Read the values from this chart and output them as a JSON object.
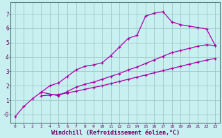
{
  "bg_color": "#c8f0f0",
  "line_color": "#aa00aa",
  "grid_color": "#9ec8c8",
  "xlabel": "Windchill (Refroidissement éolien,°C)",
  "xlabel_fontsize": 6.0,
  "ylim": [
    -0.6,
    7.8
  ],
  "xlim": [
    -0.5,
    23.5
  ],
  "yticks": [
    0,
    1,
    2,
    3,
    4,
    5,
    6,
    7
  ],
  "ytick_labels": [
    "-0",
    "1",
    "2",
    "3",
    "4",
    "5",
    "6",
    "7"
  ],
  "xticks": [
    0,
    1,
    2,
    3,
    4,
    5,
    6,
    7,
    8,
    9,
    10,
    11,
    12,
    13,
    14,
    15,
    16,
    17,
    18,
    19,
    20,
    21,
    22,
    23
  ],
  "line1_x": [
    0,
    1,
    2,
    3,
    4,
    5,
    6,
    7,
    8,
    9,
    10,
    11,
    12,
    13,
    14,
    15,
    16,
    17,
    18,
    19,
    20,
    21,
    22,
    23
  ],
  "line1_y": [
    -0.15,
    0.55,
    1.1,
    1.55,
    2.0,
    2.2,
    2.65,
    3.1,
    3.35,
    3.45,
    3.6,
    4.1,
    4.7,
    5.3,
    5.5,
    6.85,
    7.05,
    7.15,
    6.45,
    6.25,
    6.15,
    6.05,
    5.95,
    4.8
  ],
  "line2_x": [
    3,
    5,
    6,
    7,
    8,
    9,
    10,
    11,
    12,
    13,
    14,
    15,
    16,
    17,
    18,
    19,
    20,
    21,
    22,
    23
  ],
  "line2_y": [
    1.55,
    1.3,
    1.6,
    1.9,
    2.1,
    2.25,
    2.45,
    2.65,
    2.85,
    3.1,
    3.3,
    3.55,
    3.8,
    4.05,
    4.3,
    4.45,
    4.6,
    4.75,
    4.85,
    4.8
  ],
  "line3_x": [
    3,
    4,
    5,
    6,
    7,
    8,
    9,
    10,
    11,
    12,
    13,
    14,
    15,
    16,
    17,
    18,
    19,
    20,
    21,
    22,
    23
  ],
  "line3_y": [
    1.3,
    1.35,
    1.4,
    1.5,
    1.62,
    1.75,
    1.88,
    2.0,
    2.15,
    2.3,
    2.45,
    2.6,
    2.75,
    2.9,
    3.05,
    3.2,
    3.35,
    3.5,
    3.65,
    3.78,
    3.9
  ]
}
